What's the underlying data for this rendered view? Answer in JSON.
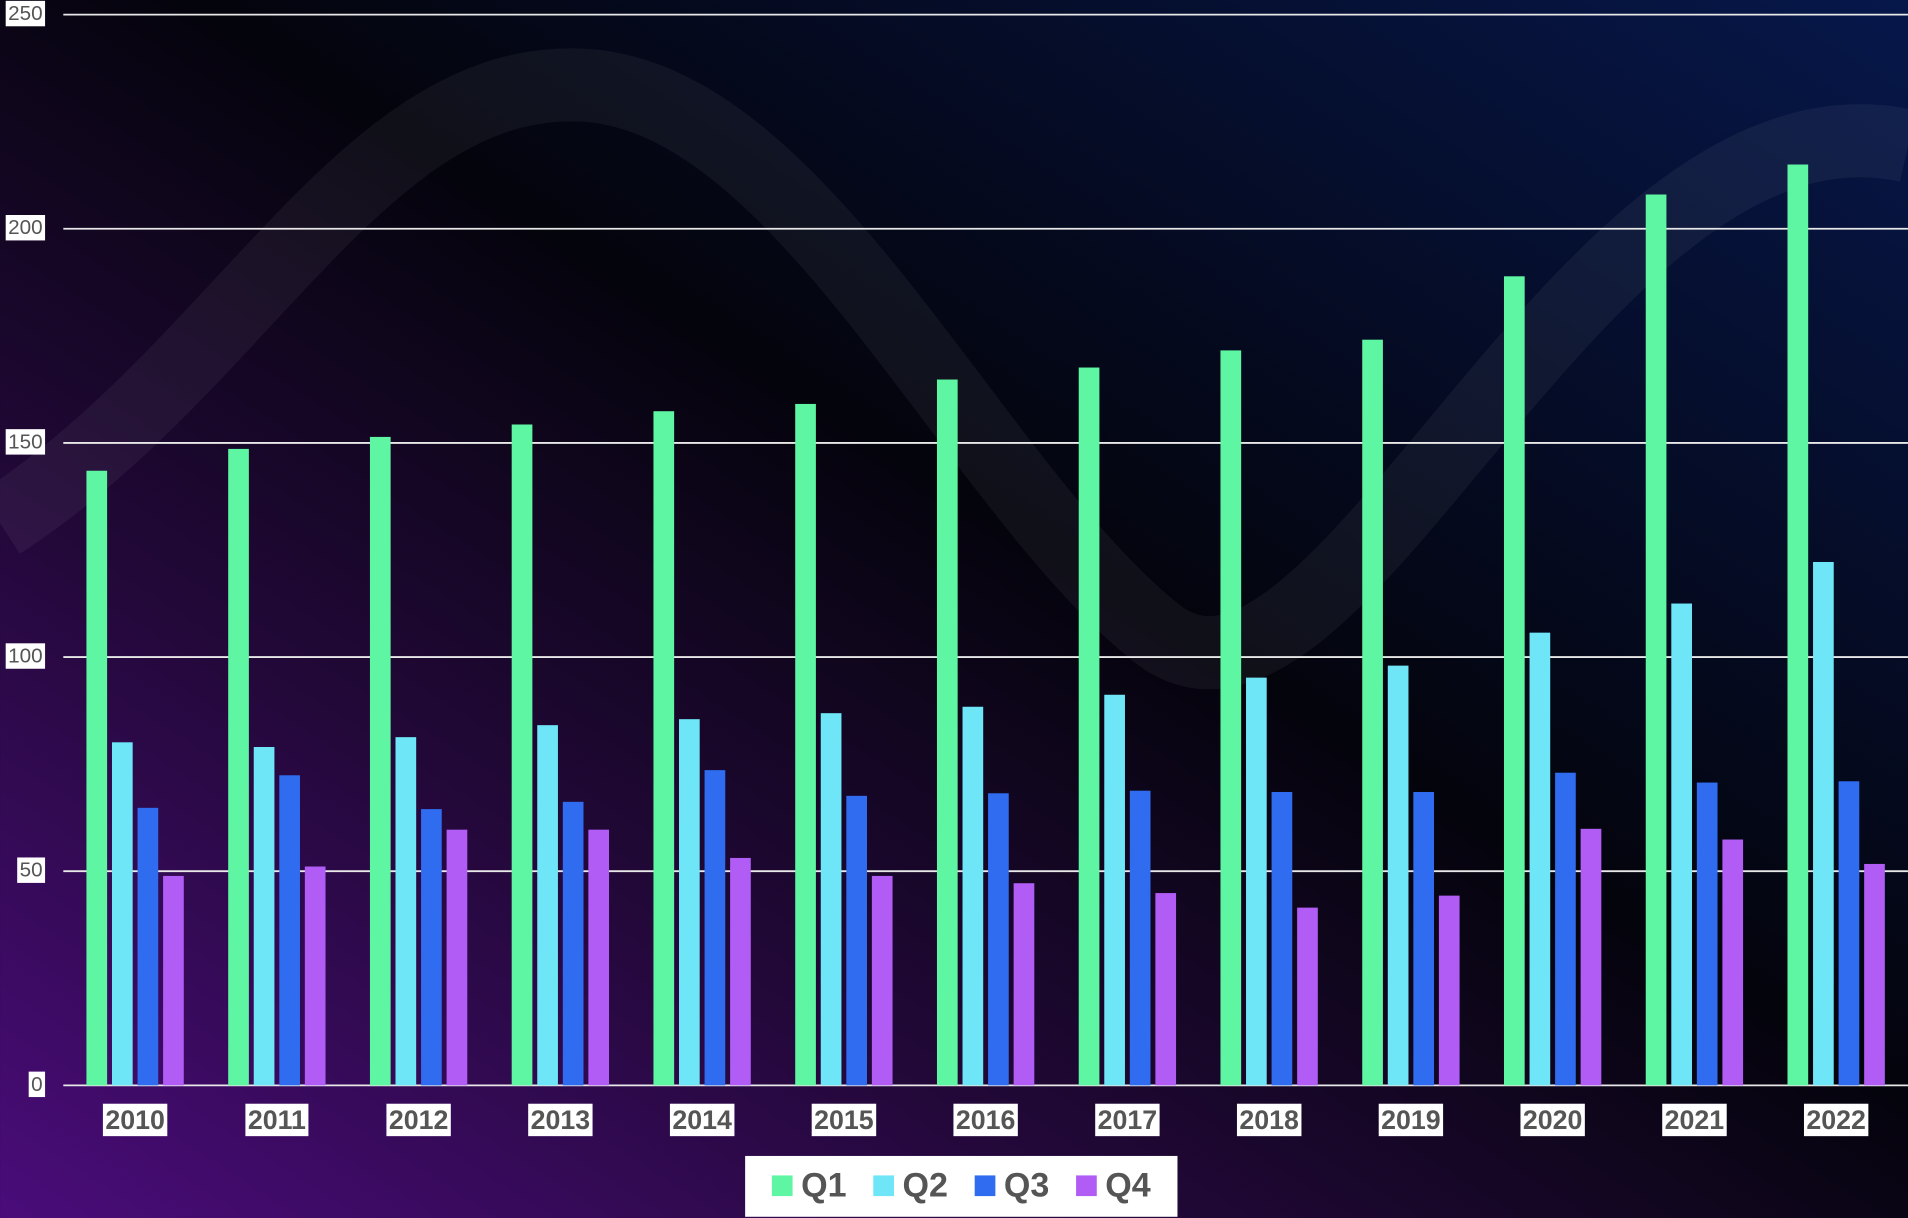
{
  "chart_data": {
    "type": "bar",
    "categories": [
      "2010",
      "2011",
      "2012",
      "2013",
      "2014",
      "2015",
      "2016",
      "2017",
      "2018",
      "2019",
      "2020",
      "2021",
      "2022"
    ],
    "series": [
      {
        "name": "Q1",
        "color": "#5ef5a3",
        "values": [
          143.5,
          148.6,
          151.4,
          154.3,
          157.4,
          159.1,
          164.8,
          167.6,
          171.6,
          174.1,
          188.9,
          208,
          215
        ]
      },
      {
        "name": "Q2",
        "color": "#6ee6f7",
        "values": [
          80.1,
          79,
          81.3,
          84.1,
          85.5,
          86.9,
          88.4,
          91.2,
          95.2,
          98,
          105.7,
          112.5,
          122.2
        ]
      },
      {
        "name": "Q3",
        "color": "#2f6cf0",
        "values": [
          64.8,
          72.4,
          64.5,
          66.2,
          73.6,
          67.6,
          68.2,
          68.8,
          68.5,
          68.5,
          73,
          70.7,
          71
        ]
      },
      {
        "name": "Q4",
        "color": "#b05cf5",
        "values": [
          48.9,
          51.1,
          59.7,
          59.7,
          53.1,
          48.9,
          47.2,
          44.9,
          41.5,
          44.3,
          59.9,
          57.4,
          51.7
        ]
      }
    ],
    "ylim": [
      0,
      250
    ],
    "yticks": [
      0,
      50,
      100,
      150,
      200,
      250
    ],
    "grid": true,
    "legend": "bottom"
  }
}
